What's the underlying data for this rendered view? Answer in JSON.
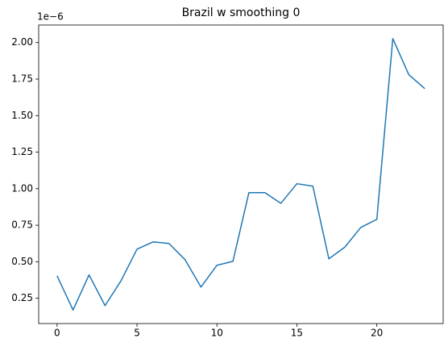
{
  "chart_data": {
    "type": "line",
    "title": "Brazil w smoothing 0",
    "y_offset_label": "1e−6",
    "x": [
      0,
      1,
      2,
      3,
      4,
      5,
      6,
      7,
      8,
      9,
      10,
      11,
      12,
      13,
      14,
      15,
      16,
      17,
      18,
      19,
      20,
      21,
      22,
      23
    ],
    "series": [
      {
        "name": "Brazil",
        "color": "#1f77b4",
        "values": [
          0.404,
          0.17,
          0.41,
          0.2,
          0.37,
          0.586,
          0.636,
          0.625,
          0.515,
          0.327,
          0.476,
          0.503,
          0.973,
          0.973,
          0.9,
          1.034,
          1.017,
          0.52,
          0.6,
          0.735,
          0.79,
          2.027,
          1.78,
          1.685
        ]
      }
    ],
    "xlim": [
      -1.15,
      24.15
    ],
    "xticks": [
      0,
      5,
      10,
      15,
      20
    ],
    "ylim": [
      0.077,
      2.12
    ],
    "yticks": [
      {
        "value": 0.25,
        "label": "0.25"
      },
      {
        "value": 0.5,
        "label": "0.50"
      },
      0.75,
      {
        "value": 1.0,
        "label": "1.00"
      },
      1.25,
      {
        "value": 1.5,
        "label": "1.50"
      },
      1.75,
      {
        "value": 2.0,
        "label": "2.00"
      }
    ],
    "grid": false
  }
}
